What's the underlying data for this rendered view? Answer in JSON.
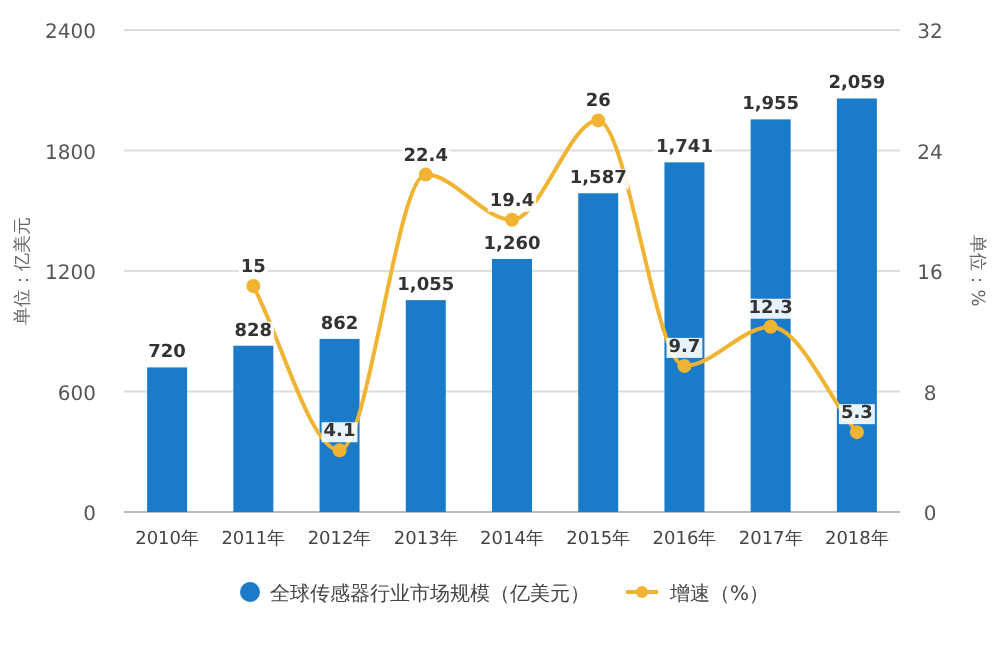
{
  "chart_data": {
    "type": "bar",
    "categories": [
      "2010年",
      "2011年",
      "2012年",
      "2013年",
      "2014年",
      "2015年",
      "2016年",
      "2017年",
      "2018年"
    ],
    "ylabel": "单位：亿美元",
    "y2label": "单位：%",
    "ylim": [
      0,
      2400
    ],
    "yticks": [
      0,
      600,
      1200,
      1800,
      2400
    ],
    "y2lim": [
      0,
      32
    ],
    "y2ticks": [
      0,
      8,
      16,
      24,
      32
    ],
    "grid": "y",
    "legend": "bottom",
    "data_labels": true,
    "series": [
      {
        "name": "全球传感器行业市场规模（亿美元）",
        "color": "#1b7bc9",
        "values": [
          720,
          828,
          862,
          1055,
          1260,
          1587,
          1741,
          1955,
          2059
        ],
        "value_labels": [
          "720",
          "828",
          "862",
          "1,055",
          "1,260",
          "1,587",
          "1,741",
          "1,955",
          "2,059"
        ]
      },
      {
        "name": "增速（%）",
        "type": "line",
        "axis": "y2",
        "color": "#f0b432",
        "marker": "circle",
        "values": [
          null,
          15,
          4.1,
          22.4,
          19.4,
          26,
          9.7,
          12.3,
          5.3
        ]
      }
    ]
  }
}
